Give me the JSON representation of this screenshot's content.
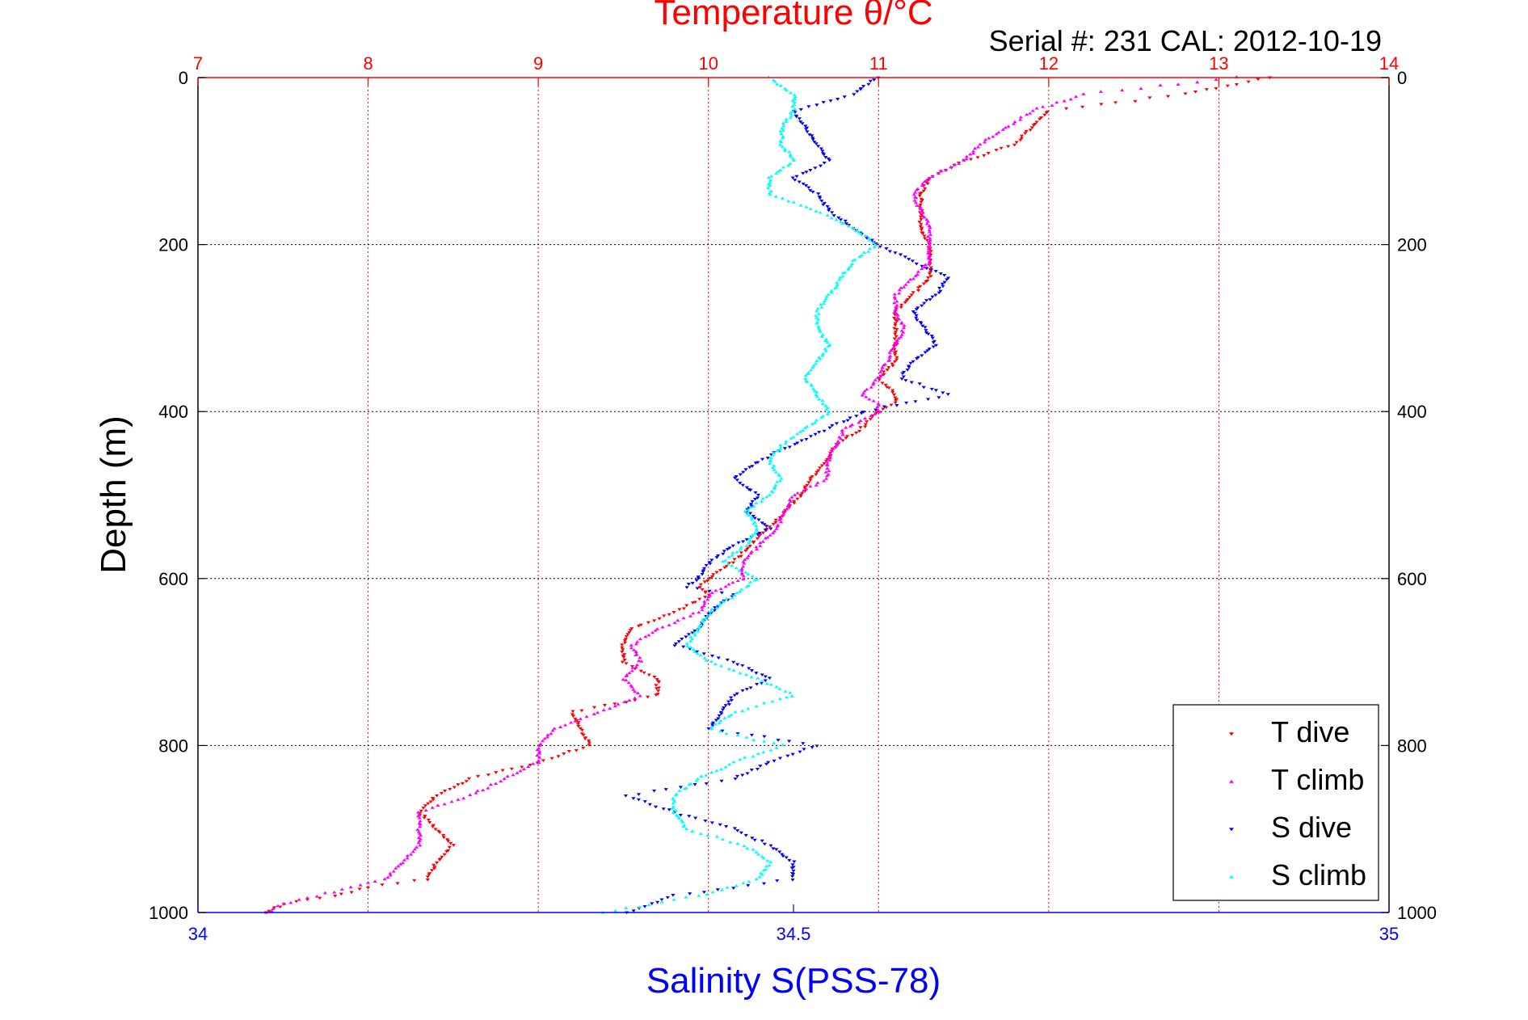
{
  "chart_data": {
    "type": "scatter",
    "title": "Temperature θ/°C",
    "subtitle": "Serial #: 231  CAL: 2012-10-19",
    "ylabel": "Depth (m)",
    "xlabel_bottom": "Salinity S(PSS-78)",
    "xlabel_top": "Temperature θ/°C",
    "ylim": [
      0,
      1000
    ],
    "y_reversed": true,
    "y_ticks": [
      "0",
      "200",
      "400",
      "600",
      "800",
      "1000"
    ],
    "temperature_axis": {
      "range": [
        7,
        14
      ],
      "ticks": [
        "7",
        "8",
        "9",
        "10",
        "11",
        "12",
        "13",
        "14"
      ]
    },
    "salinity_axis": {
      "range": [
        34,
        35
      ],
      "ticks": [
        "34",
        "34.5",
        "35"
      ],
      "tick_values": [
        34,
        34.5,
        35
      ]
    },
    "grid": true,
    "legend_position": "bottom-right",
    "colors": {
      "temperature_axis": "#ff0000",
      "salinity_axis": "#0000ff",
      "grid": "#000000",
      "t_dive": "#ff0000",
      "t_climb": "#ff00ff",
      "s_dive": "#0000ff",
      "s_climb": "#00ffff"
    },
    "series": [
      {
        "name": "T dive",
        "axis": "temperature",
        "marker": "triangle-down",
        "depth": [
          0,
          20,
          40,
          60,
          80,
          100,
          120,
          140,
          160,
          180,
          200,
          220,
          240,
          260,
          280,
          300,
          320,
          340,
          350,
          360,
          370,
          380,
          390,
          400,
          420,
          440,
          460,
          480,
          500,
          520,
          540,
          560,
          580,
          600,
          610,
          620,
          640,
          660,
          680,
          700,
          720,
          740,
          760,
          780,
          800,
          820,
          840,
          860,
          880,
          900,
          920,
          940,
          960,
          970,
          980,
          990,
          1000
        ],
        "values": [
          13.3,
          12.8,
          12.0,
          11.9,
          11.8,
          11.5,
          11.3,
          11.25,
          11.25,
          11.25,
          11.3,
          11.3,
          11.3,
          11.2,
          11.1,
          11.1,
          11.1,
          11.1,
          11.05,
          11.0,
          11.05,
          11.1,
          11.1,
          11.0,
          10.9,
          10.75,
          10.7,
          10.6,
          10.55,
          10.45,
          10.35,
          10.25,
          10.15,
          10.0,
          9.95,
          10.0,
          9.8,
          9.55,
          9.5,
          9.5,
          9.7,
          9.7,
          9.2,
          9.25,
          9.3,
          9.0,
          8.6,
          8.4,
          8.3,
          8.4,
          8.5,
          8.4,
          8.35,
          8.0,
          7.8,
          7.5,
          7.4
        ]
      },
      {
        "name": "T climb",
        "axis": "temperature",
        "marker": "triangle-up",
        "depth": [
          0,
          20,
          40,
          60,
          80,
          100,
          120,
          140,
          160,
          180,
          200,
          220,
          240,
          260,
          280,
          300,
          320,
          340,
          360,
          380,
          390,
          400,
          420,
          440,
          460,
          480,
          500,
          520,
          540,
          560,
          570,
          580,
          600,
          620,
          640,
          660,
          680,
          700,
          720,
          740,
          760,
          780,
          800,
          820,
          840,
          860,
          880,
          900,
          920,
          940,
          960,
          970,
          980,
          990,
          1000
        ],
        "values": [
          13.1,
          12.2,
          11.9,
          11.75,
          11.6,
          11.5,
          11.3,
          11.2,
          11.25,
          11.3,
          11.3,
          11.3,
          11.2,
          11.1,
          11.1,
          11.15,
          11.1,
          11.05,
          11.0,
          10.9,
          11.0,
          11.0,
          10.8,
          10.75,
          10.7,
          10.7,
          10.5,
          10.45,
          10.4,
          10.3,
          10.25,
          10.2,
          10.2,
          10.0,
          9.95,
          9.7,
          9.55,
          9.6,
          9.5,
          9.6,
          9.35,
          9.1,
          9.0,
          9.0,
          8.8,
          8.6,
          8.3,
          8.3,
          8.3,
          8.2,
          8.1,
          7.9,
          7.7,
          7.5,
          7.4
        ]
      },
      {
        "name": "S dive",
        "axis": "salinity",
        "marker": "triangle-down",
        "depth": [
          0,
          20,
          40,
          60,
          80,
          100,
          120,
          140,
          160,
          180,
          200,
          220,
          240,
          260,
          280,
          300,
          320,
          340,
          360,
          380,
          400,
          420,
          440,
          460,
          480,
          500,
          520,
          540,
          560,
          580,
          600,
          610,
          620,
          640,
          660,
          680,
          700,
          720,
          740,
          760,
          780,
          800,
          820,
          840,
          860,
          880,
          900,
          920,
          940,
          960,
          980,
          1000
        ],
        "values": [
          34.57,
          34.55,
          34.5,
          34.51,
          34.52,
          34.53,
          34.5,
          34.52,
          34.53,
          34.55,
          34.57,
          34.6,
          34.63,
          34.62,
          34.6,
          34.61,
          34.62,
          34.6,
          34.59,
          34.63,
          34.56,
          34.53,
          34.5,
          34.47,
          34.45,
          34.47,
          34.46,
          34.48,
          34.45,
          34.43,
          34.42,
          34.41,
          34.45,
          34.43,
          34.42,
          34.4,
          34.45,
          34.48,
          34.45,
          34.44,
          34.43,
          34.52,
          34.48,
          34.45,
          34.36,
          34.4,
          34.45,
          34.48,
          34.5,
          34.5,
          34.4,
          34.36
        ]
      },
      {
        "name": "S climb",
        "axis": "salinity",
        "marker": "triangle-up",
        "depth": [
          0,
          20,
          40,
          60,
          80,
          100,
          120,
          140,
          160,
          180,
          200,
          220,
          240,
          260,
          280,
          300,
          320,
          340,
          360,
          380,
          400,
          420,
          440,
          460,
          480,
          500,
          520,
          540,
          560,
          580,
          600,
          620,
          640,
          660,
          680,
          700,
          720,
          740,
          760,
          780,
          800,
          820,
          840,
          860,
          880,
          900,
          920,
          940,
          960,
          980,
          1000
        ],
        "values": [
          34.48,
          34.5,
          34.5,
          34.49,
          34.49,
          34.5,
          34.48,
          34.48,
          34.52,
          34.55,
          34.57,
          34.55,
          34.54,
          34.53,
          34.52,
          34.52,
          34.53,
          34.52,
          34.51,
          34.52,
          34.53,
          34.51,
          34.49,
          34.48,
          34.49,
          34.48,
          34.46,
          34.47,
          34.46,
          34.44,
          34.47,
          34.45,
          34.43,
          34.42,
          34.41,
          34.43,
          34.47,
          34.5,
          34.45,
          34.43,
          34.49,
          34.45,
          34.42,
          34.4,
          34.4,
          34.41,
          34.46,
          34.48,
          34.47,
          34.42,
          34.34
        ]
      }
    ]
  }
}
